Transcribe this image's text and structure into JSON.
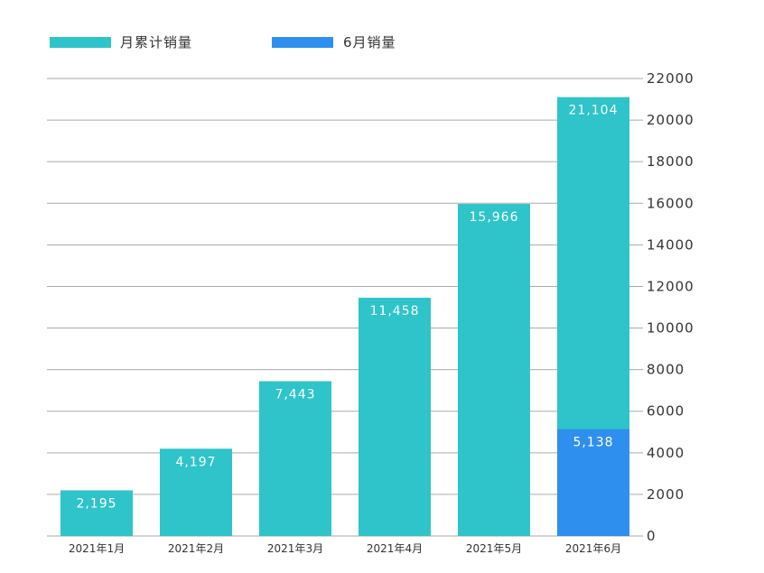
{
  "chart_data": {
    "type": "bar",
    "categories": [
      "2021年1月",
      "2021年2月",
      "2021年3月",
      "2021年4月",
      "2021年5月",
      "2021年6月"
    ],
    "series": [
      {
        "name": "月累计销量",
        "values": [
          2195,
          4197,
          7443,
          11458,
          15966,
          21104
        ],
        "labels": [
          "2,195",
          "4,197",
          "7,443",
          "11,458",
          "15,966",
          "21,104"
        ]
      },
      {
        "name": "6月销量",
        "values": [
          null,
          null,
          null,
          null,
          null,
          5138
        ],
        "labels": [
          "",
          "",
          "",
          "",
          "",
          "5,138"
        ]
      }
    ],
    "ylim": [
      0,
      22000
    ],
    "yticks": [
      0,
      2000,
      4000,
      6000,
      8000,
      10000,
      12000,
      14000,
      16000,
      18000,
      20000,
      22000
    ],
    "y_axis_side": "right",
    "grid": true,
    "legend_position": "top-left",
    "colors": {
      "cumulative": "#2ec4c9",
      "june": "#2f8fef",
      "grid": "#aaaaaa",
      "text": "#333333",
      "bar_label": "#ffffff"
    }
  }
}
